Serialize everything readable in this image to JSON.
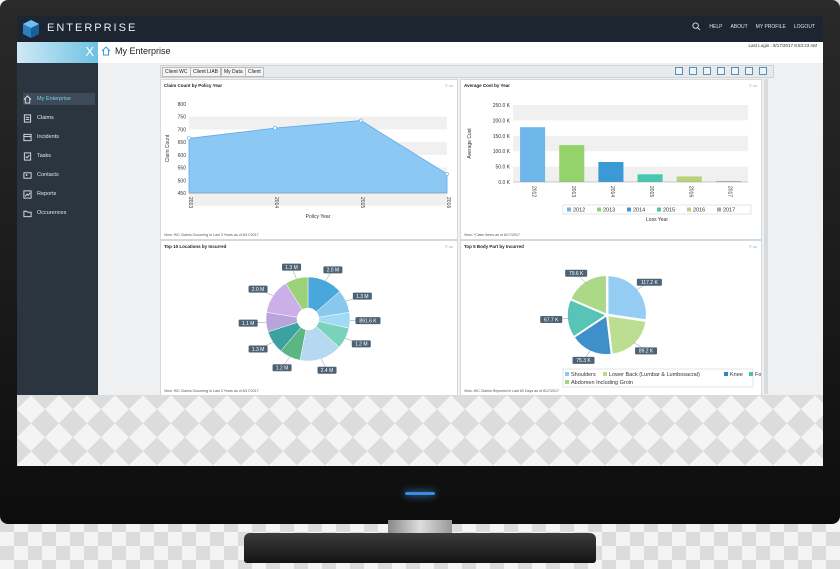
{
  "app": {
    "brand": "ENTERPRISE"
  },
  "header": {
    "links": [
      "HELP",
      "ABOUT",
      "MY PROFILE",
      "LOGOUT"
    ],
    "last_login": "Last Login : 8/17/2017 8:53:23 AM"
  },
  "subbar": {
    "close_label": "X",
    "title": "My Enterprise"
  },
  "sidebar": {
    "items": [
      {
        "label": "My Enterprise",
        "icon": "home-icon"
      },
      {
        "label": "Claims",
        "icon": "claims-icon"
      },
      {
        "label": "Incidents",
        "icon": "incidents-icon"
      },
      {
        "label": "Tasks",
        "icon": "tasks-icon"
      },
      {
        "label": "Contacts",
        "icon": "contacts-icon"
      },
      {
        "label": "Reports",
        "icon": "reports-icon"
      },
      {
        "label": "Occurences",
        "icon": "folder-icon"
      }
    ]
  },
  "tabs": [
    "Client WC",
    "Client LIAB",
    "My Data",
    "Client"
  ],
  "panels": {
    "p1": {
      "title": "Claim Count by Policy Year",
      "view": "View: WC Claims Occurring in Last 3 Years as of 8/17/2017"
    },
    "p2": {
      "title": "Average Cost by Year",
      "view": "View: *Claim Items as of 8/17/2017"
    },
    "p3": {
      "title": "Top 10 Locations by Incurred",
      "view": "View: WC Claims Occurring in Last 3 Years as of 8/17/2017"
    },
    "p4": {
      "title": "Top 5 Body Part by Incurred",
      "view": "View: WC Claims Reported in Last 60 Days as of 8/17/2017"
    }
  },
  "chart_data": [
    {
      "type": "area",
      "title": "Claim Count by Policy Year",
      "xlabel": "Policy Year",
      "ylabel": "Claim Count",
      "x": [
        "2013",
        "2014",
        "2015",
        "2016"
      ],
      "values": [
        665,
        705,
        735,
        525
      ],
      "ylim": [
        450,
        800
      ],
      "yticks": [
        "800",
        "750",
        "700",
        "650",
        "600",
        "550",
        "500",
        "450"
      ],
      "color": "#8cc8f4"
    },
    {
      "type": "bar",
      "title": "Average Cost by Year",
      "xlabel": "Loss Year",
      "ylabel": "Average Cost",
      "categories": [
        "2012",
        "2013",
        "2014",
        "2015",
        "2016",
        "2017"
      ],
      "values": [
        178000,
        120000,
        65000,
        25000,
        18000,
        3000
      ],
      "ylim": [
        0,
        250000
      ],
      "yticks": [
        "250.0 K",
        "200.0 K",
        "150.0 K",
        "100.0 K",
        "50.0 K",
        "0.0 K"
      ],
      "colors": [
        "#6fb6ea",
        "#95d26b",
        "#3b9ad6",
        "#48c6b0",
        "#b8d47a",
        "#a8a8b8"
      ]
    },
    {
      "type": "pie",
      "title": "Top 10 Locations by Incurred",
      "labels": [
        "2.0 M",
        "1.3 M",
        "891.6 K",
        "1.2 M",
        "2.4 M",
        "1.2 M",
        "1.3 M",
        "1.1 M",
        "2.0 M",
        "1.3 M"
      ],
      "values": [
        2.0,
        1.3,
        0.8916,
        1.2,
        2.4,
        1.2,
        1.3,
        1.1,
        2.0,
        1.3
      ],
      "colors": [
        "#3aa0d8",
        "#7fc3ec",
        "#9ad7f5",
        "#6fcfb5",
        "#aed6f0",
        "#4fb07a",
        "#2b9a9a",
        "#b39ddb",
        "#c8a8e8",
        "#93cf6e"
      ]
    },
    {
      "type": "pie",
      "title": "Top 5 Body Part by Incurred",
      "labels": [
        "117.2 K",
        "89.2 K",
        "75.3 K",
        "67.7 K",
        "79.6 K"
      ],
      "values": [
        117.2,
        89.2,
        75.3,
        67.7,
        79.6
      ],
      "colors": [
        "#8cc8f4",
        "#b7dc8a",
        "#2f86c6",
        "#4abfb0",
        "#a6d67e"
      ],
      "legend": [
        "Shoulders",
        "Lower Back (Lumbar & Lumbosacral)",
        "Knee",
        "Foot",
        "Abdomen Including Groin"
      ]
    }
  ]
}
